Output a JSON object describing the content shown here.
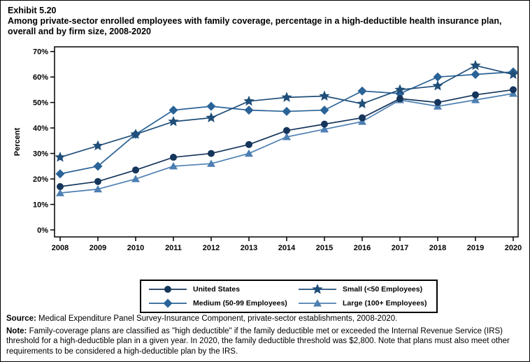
{
  "title": {
    "exhibit": "Exhibit 5.20",
    "text": "Among private-sector enrolled employees with family coverage, percentage in a high-deductible health insurance plan, overall and by firm size, 2008-2020"
  },
  "chart_data": {
    "type": "line",
    "x": [
      2008,
      2009,
      2010,
      2011,
      2012,
      2013,
      2014,
      2015,
      2016,
      2017,
      2018,
      2019,
      2020
    ],
    "ylabel": "Percent",
    "ylim": [
      0,
      70
    ],
    "ytick_step": 10,
    "ytick_suffix": "%",
    "grid": false,
    "legend_position": "bottom",
    "draw_order": [
      1,
      3,
      0,
      2
    ],
    "series": [
      {
        "name": "United States",
        "marker": "circle",
        "color": "#15355b",
        "values": [
          17,
          19,
          23.5,
          28.5,
          30,
          33.5,
          39,
          41.5,
          44,
          51.5,
          50,
          53,
          55
        ]
      },
      {
        "name": "Medium (50-99 Employees)",
        "marker": "diamond",
        "color": "#2a6397",
        "values": [
          22,
          25,
          37.5,
          47,
          48.5,
          47,
          46.5,
          47,
          54.5,
          53.5,
          60,
          61,
          62
        ]
      },
      {
        "name": "Small (<50 Employees)",
        "marker": "star",
        "color": "#1f4e79",
        "values": [
          28.5,
          33,
          37.5,
          42.5,
          44,
          50.5,
          52,
          52.5,
          49.5,
          55,
          56.5,
          64.5,
          61
        ]
      },
      {
        "name": "Large (100+ Employees)",
        "marker": "triangle",
        "color": "#4d7fb2",
        "values": [
          14.5,
          16,
          20,
          25,
          26,
          30,
          36.5,
          39.5,
          42.5,
          51,
          48.5,
          51,
          53.5
        ]
      }
    ]
  },
  "footer": {
    "source_label": "Source:",
    "source_text": " Medical Expenditure Panel Survey-Insurance Component, private-sector establishments, 2008-2020.",
    "note_label": "Note:",
    "note_text": " Family-coverage plans are classified as \"high deductible\" if the family deductible met or exceeded the Internal Revenue Service (IRS) threshold for a high-deductible plan in a given year. In 2020, the family deductible threshold was $2,800. Note that plans must also meet other requirements to be considered a high-deductible plan by the IRS."
  }
}
